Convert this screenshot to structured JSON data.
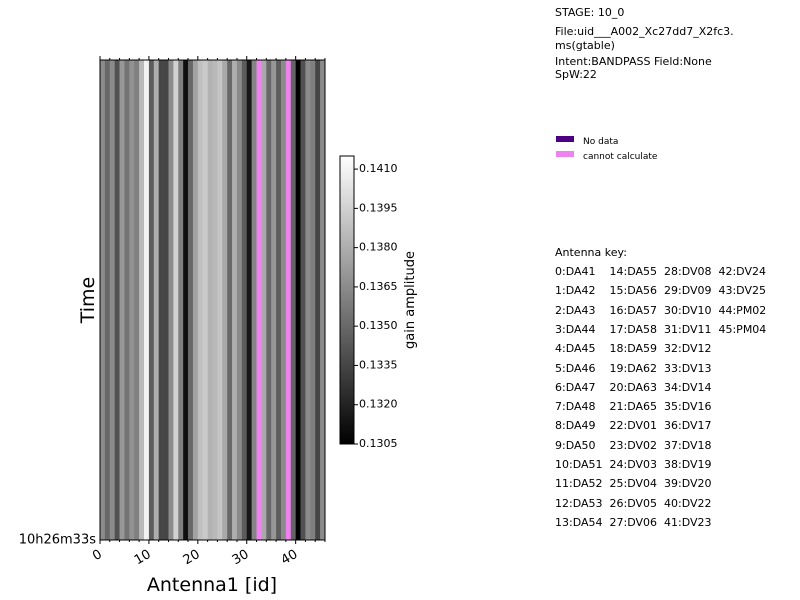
{
  "info": {
    "stage": "STAGE: 10_0",
    "file_line1": "File:uid___A002_Xc27dd7_X2fc3.",
    "file_line2": "ms(gtable)",
    "intent": "Intent:BANDPASS Field:None",
    "spw": "SpW:22"
  },
  "legend": {
    "items": [
      {
        "label": "No data",
        "color": "#4b0082"
      },
      {
        "label": "cannot calculate",
        "color": "#ee82ee"
      }
    ]
  },
  "antenna_key": {
    "title": "Antenna key:",
    "rows": [
      "0:DA41    14:DA55  28:DV08  42:DV24",
      "1:DA42    15:DA56  29:DV09  43:DV25",
      "2:DA43    16:DA57  30:DV10  44:PM02",
      "3:DA44    17:DA58  31:DV11  45:PM04",
      "4:DA45    18:DA59  32:DV12",
      "5:DA46    19:DA62  33:DV13",
      "6:DA47    20:DA63  34:DV14",
      "7:DA48    21:DA65  35:DV16",
      "8:DA49    22:DV01  36:DV17",
      "9:DA50    23:DV02  37:DV18",
      "10:DA51  24:DV03  38:DV19",
      "11:DA52  25:DV04  39:DV20",
      "12:DA53  26:DV05  40:DV22",
      "13:DA54  27:DV06  41:DV23"
    ]
  },
  "chart_data": {
    "type": "heatmap",
    "xlabel": "Antenna1 [id]",
    "ylabel": "Time",
    "x_ticks": [
      0,
      10,
      20,
      30,
      40
    ],
    "x_tick_labels": [
      "0",
      "10",
      "20",
      "30",
      "40"
    ],
    "y_tick_label": "10h26m33s",
    "xlim": [
      0,
      46
    ],
    "colorbar": {
      "label": "gain amplitude",
      "vmin": 0.1305,
      "vmax": 0.1415,
      "ticks": [
        0.1305,
        0.132,
        0.1335,
        0.135,
        0.1365,
        0.138,
        0.1395,
        0.141
      ],
      "tick_labels": [
        "0.1305",
        "0.1320",
        "0.1335",
        "0.1350",
        "0.1365",
        "0.1380",
        "0.1395",
        "0.1410"
      ]
    },
    "cannot_calculate_color": "#ee82ee",
    "no_data_color": "#4b0082",
    "antennas": [
      0,
      1,
      2,
      3,
      4,
      5,
      6,
      7,
      8,
      9,
      10,
      11,
      12,
      13,
      14,
      15,
      16,
      17,
      18,
      19,
      20,
      21,
      22,
      23,
      24,
      25,
      26,
      27,
      28,
      29,
      30,
      31,
      32,
      33,
      34,
      35,
      36,
      37,
      38,
      39,
      40,
      41,
      42,
      43,
      44,
      45
    ],
    "values": [
      0.1365,
      0.135,
      0.1365,
      0.134,
      0.137,
      0.1355,
      0.1368,
      0.136,
      0.1385,
      0.141,
      0.1345,
      0.138,
      0.1335,
      0.1335,
      0.1365,
      0.1395,
      0.136,
      0.1312,
      0.135,
      0.1375,
      0.1388,
      0.1392,
      0.1382,
      0.1385,
      0.139,
      0.1378,
      0.135,
      0.138,
      0.1365,
      0.1345,
      0.1315,
      0.1362,
      null,
      0.1378,
      0.135,
      0.137,
      0.1345,
      0.1365,
      null,
      0.1348,
      0.1306,
      0.134,
      0.1365,
      0.136,
      0.1335,
      0.1365
    ]
  }
}
